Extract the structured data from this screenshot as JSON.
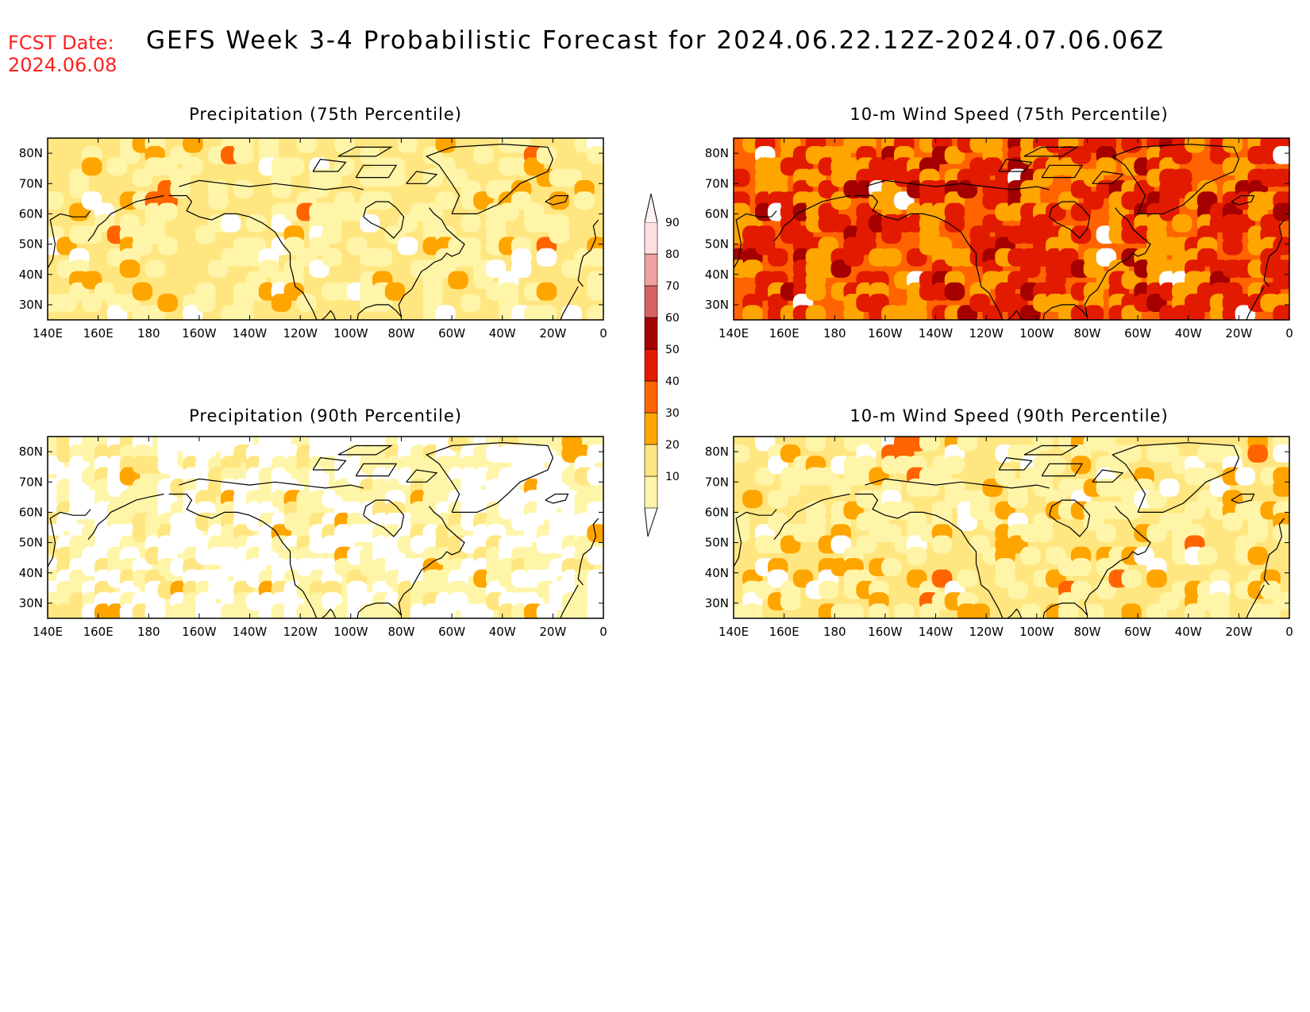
{
  "header": {
    "fcst_label": "FCST Date:",
    "fcst_date": "2024.06.08",
    "title": "GEFS Week 3-4 Probabilistic Forecast for 2024.06.22.12Z-2024.07.06.06Z",
    "label_color": "#ff0000"
  },
  "panels": [
    {
      "title": "Precipitation (75th Percentile)",
      "base_level": 20,
      "hot_level": 30,
      "hot_fraction": 0.06,
      "white_fraction": 0.05
    },
    {
      "title": "10-m Wind Speed (75th Percentile)",
      "base_level": 40,
      "hot_level": 50,
      "hot_fraction": 0.35,
      "white_fraction": 0.02
    },
    {
      "title": "Precipitation (90th Percentile)",
      "base_level": 10,
      "hot_level": 20,
      "hot_fraction": 0.12,
      "white_fraction": 0.45
    },
    {
      "title": "10-m Wind Speed (90th Percentile)",
      "base_level": 20,
      "hot_level": 30,
      "hot_fraction": 0.12,
      "white_fraction": 0.05
    }
  ],
  "axes": {
    "lon_ticks": [
      "140E",
      "160E",
      "180",
      "160W",
      "140W",
      "120W",
      "100W",
      "80W",
      "60W",
      "40W",
      "20W",
      "0"
    ],
    "lat_ticks": [
      "80N",
      "70N",
      "60N",
      "50N",
      "40N",
      "30N"
    ],
    "lon_range": [
      140,
      360
    ],
    "lat_range": [
      25,
      85
    ]
  },
  "colorbar": {
    "levels": [
      {
        "label": "10",
        "color": "#fff5a8"
      },
      {
        "label": "20",
        "color": "#ffe680"
      },
      {
        "label": "30",
        "color": "#ffa500"
      },
      {
        "label": "40",
        "color": "#ff6400"
      },
      {
        "label": "50",
        "color": "#e21a00"
      },
      {
        "label": "60",
        "color": "#a50000"
      },
      {
        "label": "70",
        "color": "#d76161"
      },
      {
        "label": "80",
        "color": "#f0a0a0"
      },
      {
        "label": "90",
        "color": "#ffe0e0"
      }
    ]
  }
}
